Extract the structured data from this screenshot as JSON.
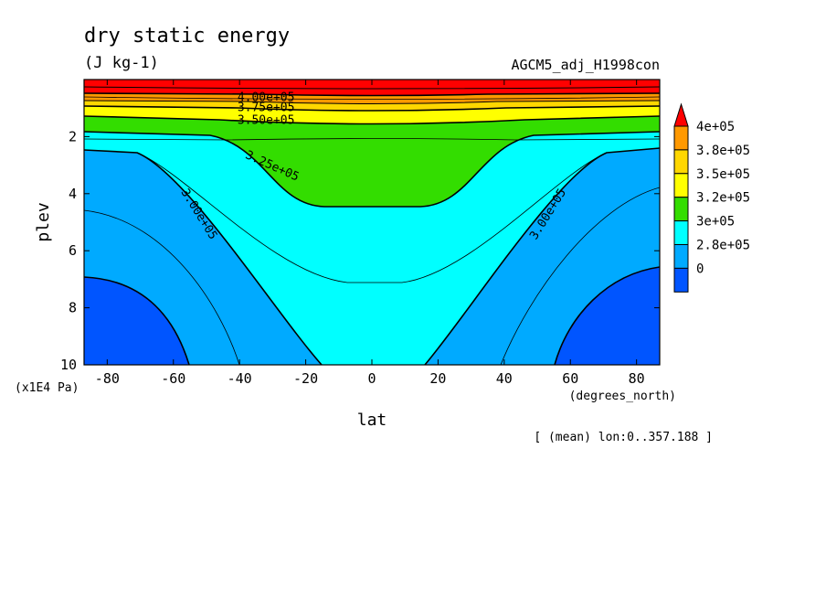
{
  "chart_data": {
    "type": "heatmap",
    "title": "dry static energy",
    "units": "(J kg-1)",
    "run_name": "AGCM5_adj_H1998con",
    "xlabel": "lat",
    "xunits": "(degrees_north)",
    "ylabel": "plev",
    "yunits": "(x1E4 Pa)",
    "subtitle": "[ (mean) lon:0..357.188 ]",
    "xlim": [
      -87,
      87
    ],
    "ylim": [
      10,
      0
    ],
    "x_ticks": [
      -80,
      -60,
      -40,
      -20,
      0,
      20,
      40,
      60,
      80
    ],
    "x_tick_labels": [
      "-80",
      "-60",
      "-40",
      "-20",
      "0",
      "20",
      "40",
      "60",
      "80"
    ],
    "y_ticks": [
      2,
      4,
      6,
      8,
      10
    ],
    "y_tick_labels": [
      "2",
      "4",
      "6",
      "8",
      "10"
    ],
    "contour_labels": [
      {
        "text": "4.00e+05",
        "lat": -32,
        "plev": 0.6
      },
      {
        "text": "3.75e+05",
        "lat": -32,
        "plev": 0.95
      },
      {
        "text": "3.50e+05",
        "lat": -32,
        "plev": 1.4
      },
      {
        "text": "3.25e+05",
        "lat": -30,
        "plev": 3.0
      },
      {
        "text": "3.00e+05",
        "lat": -52,
        "plev": 4.7
      },
      {
        "text": "3.00e+05",
        "lat": 53,
        "plev": 4.7
      }
    ],
    "legend": {
      "placement": "right",
      "labels": [
        "4e+05",
        "3.8e+05",
        "3.5e+05",
        "3.2e+05",
        "3e+05",
        "2.8e+05",
        "0"
      ],
      "colors": [
        "#ff9900",
        "#ffd700",
        "#ffff00",
        "#33dd00",
        "#00ffff",
        "#00aaff",
        "#0055ff"
      ],
      "overflow_color": "#ff0000"
    },
    "fill_colors": {
      "over_400k": "#ff0000",
      "375k_400k": "#ff9900",
      "362k_375k": "#ffd700",
      "350k_362k": "#ffff00",
      "325k_350k": "#33dd00",
      "300k_325k": "#00ffff",
      "275k_300k": "#00aaff",
      "under_275k": "#0055ff"
    }
  }
}
